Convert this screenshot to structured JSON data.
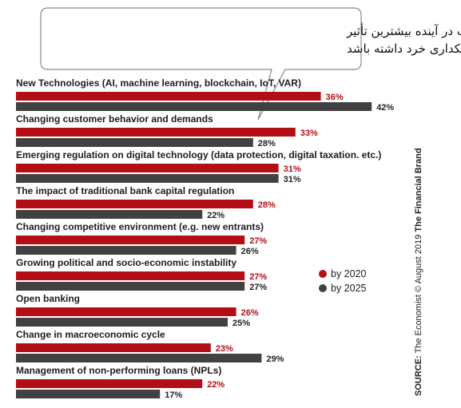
{
  "callout": {
    "line1": "روندهایی که ممکن است در آینده بیشترین تأثیر",
    "line2": "را روی بانکداری خرد داشته باشد"
  },
  "legend": {
    "series_a": "by 2020",
    "series_b": "by 2025"
  },
  "source": {
    "prefix": "SOURCE:",
    "text": " The Economist © August 2019 ",
    "brand": "The Financial Brand"
  },
  "colors": {
    "series_a": "#b30e16",
    "series_b": "#414141"
  },
  "chart_data": {
    "type": "bar",
    "orientation": "horizontal",
    "unit": "%",
    "categories": [
      "New Technologies (AI, machine learning, blockchain, IoT, VAR)",
      "Changing customer behavior and demands",
      "Emerging regulation on digital technology (data protection, digital taxation. etc.)",
      "The impact of traditional bank capital regulation",
      "Changing competitive environment (e.g. new entrants)",
      "Growing political and socio-economic instability",
      "Open banking",
      "Change in macroeconomic cycle",
      "Management of non-performing loans (NPLs)"
    ],
    "series": [
      {
        "name": "by 2020",
        "values": [
          36,
          33,
          31,
          28,
          27,
          27,
          26,
          23,
          22
        ]
      },
      {
        "name": "by 2025",
        "values": [
          42,
          28,
          31,
          22,
          26,
          27,
          25,
          29,
          17
        ]
      }
    ],
    "value_labels": {
      "by 2020": [
        "36%",
        "33%",
        "31%",
        "28%",
        "27%",
        "27%",
        "26%",
        "23%",
        "22%"
      ],
      "by 2025": [
        "42%",
        "28%",
        "31%",
        "22%",
        "26%",
        "27%",
        "25%",
        "29%",
        "17%"
      ]
    },
    "legend_position": "right",
    "grid": false
  }
}
